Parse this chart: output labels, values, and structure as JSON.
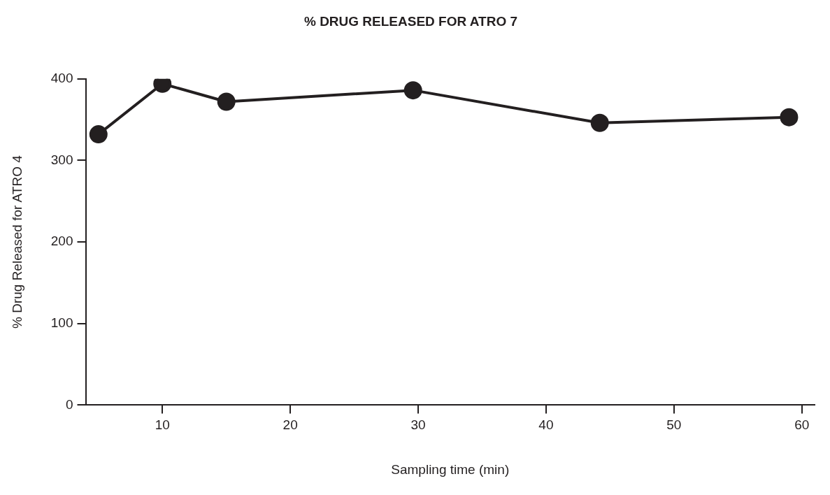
{
  "chart_data": {
    "type": "line",
    "title": "% DRUG RELEASED FOR ATRO 7",
    "xlabel": "Sampling time (min)",
    "ylabel": "% Drug Released for ATRO 4",
    "x": [
      5,
      10,
      15,
      29.6,
      44.2,
      59
    ],
    "series": [
      {
        "color": "#231f20",
        "values": [
          332,
          394,
          372,
          386,
          346,
          353
        ]
      }
    ],
    "xlim": [
      4,
      61
    ],
    "xticks": [
      10,
      20,
      30,
      40,
      50,
      60
    ],
    "ylim": [
      0,
      400
    ],
    "yticks": [
      0,
      100,
      200,
      300,
      400
    ],
    "grid": false,
    "legend": false,
    "marker": "circle",
    "line_style": "solid"
  }
}
